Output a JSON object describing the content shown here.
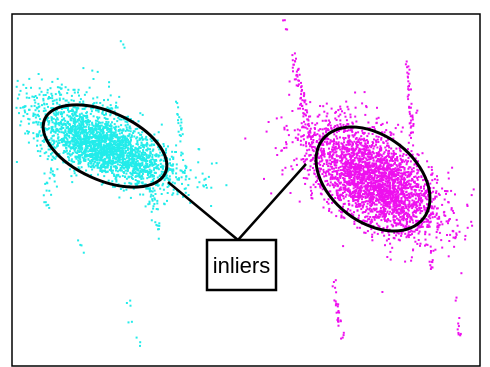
{
  "callout": {
    "label": "inliers"
  },
  "colors": {
    "cluster_left": "#22ecea",
    "cluster_right": "#ee10ee",
    "outline": "#000000",
    "background": "#ffffff"
  }
}
